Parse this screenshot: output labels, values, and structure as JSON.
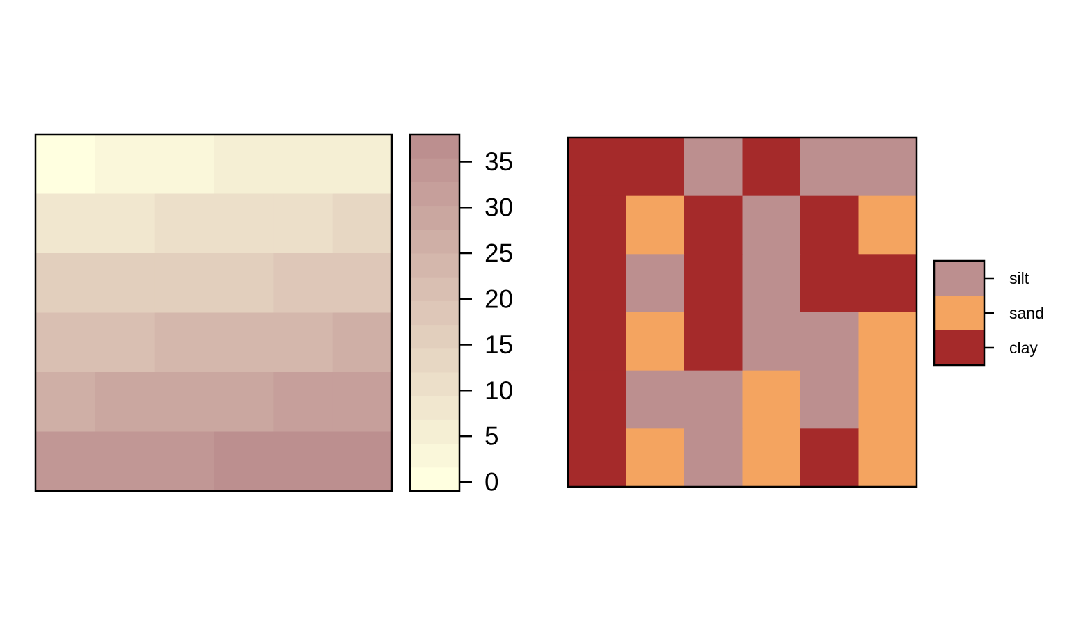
{
  "chart_data": [
    {
      "type": "heatmap",
      "grid_rows": 6,
      "grid_cols": 6,
      "values": [
        [
          1,
          3,
          3,
          5,
          5,
          5
        ],
        [
          9,
          9,
          11,
          11,
          11,
          13
        ],
        [
          15,
          17,
          17,
          17,
          19,
          19
        ],
        [
          22,
          22,
          24,
          24,
          24,
          26
        ],
        [
          26,
          29,
          29,
          29,
          31,
          31
        ],
        [
          33,
          33,
          33,
          36,
          36,
          38
        ]
      ],
      "colorbar": {
        "range": [
          -1,
          38
        ],
        "ticks": [
          "0",
          "5",
          "10",
          "15",
          "20",
          "25",
          "30",
          "35"
        ],
        "tick_values": [
          0,
          5,
          10,
          15,
          20,
          25,
          30,
          35
        ],
        "bins": 15,
        "color_low": "#FFFFE0",
        "color_high": "#BC8F8F"
      }
    },
    {
      "type": "heatmap",
      "grid_rows": 6,
      "grid_cols": 6,
      "classes": [
        "clay",
        "sand",
        "silt"
      ],
      "values": [
        [
          "clay",
          "clay",
          "silt",
          "clay",
          "silt",
          "silt"
        ],
        [
          "clay",
          "sand",
          "clay",
          "silt",
          "clay",
          "sand"
        ],
        [
          "clay",
          "silt",
          "clay",
          "silt",
          "clay",
          "clay"
        ],
        [
          "clay",
          "sand",
          "clay",
          "silt",
          "silt",
          "sand"
        ],
        [
          "clay",
          "silt",
          "silt",
          "sand",
          "silt",
          "sand"
        ],
        [
          "clay",
          "sand",
          "silt",
          "sand",
          "clay",
          "sand"
        ]
      ],
      "legend": {
        "entries": [
          {
            "label": "silt",
            "color": "#BC8F8F"
          },
          {
            "label": "sand",
            "color": "#F4A460"
          },
          {
            "label": "clay",
            "color": "#A52A2A"
          }
        ],
        "position": "right"
      }
    }
  ]
}
